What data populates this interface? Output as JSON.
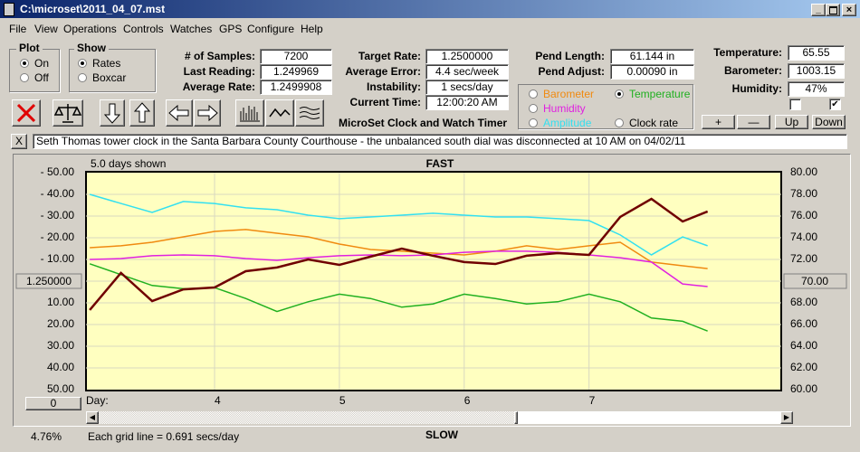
{
  "window": {
    "title": "C:\\microset\\2011_04_07.mst"
  },
  "menu": [
    "File",
    "View",
    "Operations",
    "Controls",
    "Watches",
    "GPS",
    "Configure",
    "Help"
  ],
  "plot_group": {
    "title": "Plot",
    "options": [
      "On",
      "Off"
    ],
    "selected": 0
  },
  "show_group": {
    "title": "Show",
    "options": [
      "Rates",
      "Boxcar"
    ],
    "selected": 0
  },
  "fields": [
    {
      "label": "# of Samples:",
      "value": "7200"
    },
    {
      "label": "Last Reading:",
      "value": "1.249969"
    },
    {
      "label": "Average Rate:",
      "value": "1.2499908"
    },
    {
      "label": "Target Rate:",
      "value": "1.2500000"
    },
    {
      "label": "Average Error:",
      "value": "4.4 sec/week"
    },
    {
      "label": "Instability:",
      "value": "1 secs/day"
    },
    {
      "label": "Current Time:",
      "value": "12:00:20 AM"
    },
    {
      "label": "Pend Length:",
      "value": "61.144 in"
    },
    {
      "label": "Pend Adjust:",
      "value": "0.00090 in"
    },
    {
      "label": "Temperature:",
      "value": "65.55"
    },
    {
      "label": "Barometer:",
      "value": "1003.15"
    },
    {
      "label": "Humidity:",
      "value": "47%"
    }
  ],
  "app_name": "MicroSet Clock and Watch Timer",
  "clock_rate_option": "Clock rate",
  "buttons": [
    "+",
    "—",
    "Up",
    "Down"
  ],
  "checkboxes": [
    false,
    true
  ],
  "comment": {
    "close": "X",
    "text": "Seth Thomas tower clock in the Santa Barbara County Courthouse - the unbalanced south dial was disconnected at 10 AM on 04/02/11"
  },
  "status": {
    "percent": "4.76%",
    "grid_note": "Each grid line = 0.691 secs/day",
    "offset_button": "0"
  },
  "chart_data": {
    "type": "line",
    "top_label": "FAST",
    "bottom_label": "SLOW",
    "span_label": "5.0 days shown",
    "x_label": "Day:",
    "xlim": [
      2.97,
      8.54
    ],
    "xticks": [
      4,
      5,
      6,
      7
    ],
    "ylim": [
      -50,
      50
    ],
    "yticks": [
      {
        "value": 50,
        "label": "- 50.00"
      },
      {
        "value": 40,
        "label": "- 40.00"
      },
      {
        "value": 30,
        "label": "- 30.00"
      },
      {
        "value": 20,
        "label": "- 20.00"
      },
      {
        "value": 10,
        "label": "- 10.00"
      },
      {
        "value": 0,
        "label": "1.250000"
      },
      {
        "value": -10,
        "label": "10.00"
      },
      {
        "value": -20,
        "label": "20.00"
      },
      {
        "value": -30,
        "label": "30.00"
      },
      {
        "value": -40,
        "label": "40.00"
      },
      {
        "value": -50,
        "label": "50.00"
      }
    ],
    "y2lim": [
      60,
      80
    ],
    "y2ticks": [
      {
        "value": 80,
        "label": "80.00"
      },
      {
        "value": 78,
        "label": "78.00"
      },
      {
        "value": 76,
        "label": "76.00"
      },
      {
        "value": 74,
        "label": "74.00"
      },
      {
        "value": 72,
        "label": "72.00"
      },
      {
        "value": 70,
        "label": "70.00"
      },
      {
        "value": 68,
        "label": "68.00"
      },
      {
        "value": 66,
        "label": "66.00"
      },
      {
        "value": 64,
        "label": "64.00"
      },
      {
        "value": 62,
        "label": "62.00"
      },
      {
        "value": 60,
        "label": "60.00"
      }
    ],
    "grid": true,
    "legend_selected": 3,
    "x": [
      3.0,
      3.25,
      3.5,
      3.75,
      4.0,
      4.25,
      4.5,
      4.75,
      5.0,
      5.25,
      5.5,
      5.75,
      6.0,
      6.25,
      6.5,
      6.75,
      7.0,
      7.25,
      7.5,
      7.75,
      7.95
    ],
    "series": [
      {
        "name": "Amplitude",
        "color": "#33e0f0",
        "values": [
          40,
          35.8,
          31.7,
          36.7,
          35.8,
          33.8,
          32.9,
          30.4,
          28.8,
          29.6,
          30.4,
          31.3,
          30.4,
          29.6,
          29.6,
          28.8,
          27.9,
          21.3,
          12.1,
          20.4,
          16.3
        ]
      },
      {
        "name": "Barometer",
        "color": "#f08a10",
        "values": [
          15.4,
          16.3,
          17.9,
          20.4,
          22.9,
          23.8,
          22.1,
          20.4,
          17.1,
          14.6,
          13.8,
          12.9,
          12.1,
          13.8,
          16.3,
          14.6,
          16.3,
          17.9,
          8.8,
          7.1,
          5.8
        ]
      },
      {
        "name": "Humidity",
        "color": "#e020e0",
        "values": [
          10,
          10.4,
          11.7,
          12.1,
          11.7,
          10.4,
          9.6,
          10.8,
          11.7,
          12.1,
          11.7,
          12.1,
          13.3,
          13.8,
          13.8,
          13.3,
          12.1,
          10.8,
          8.8,
          -1.3,
          -2.5
        ]
      },
      {
        "name": "Temperature",
        "color": "#20b020",
        "axis": "y2",
        "values": [
          71.6,
          70.6,
          69.6,
          69.3,
          69.4,
          68.4,
          67.2,
          68.1,
          68.8,
          68.4,
          67.6,
          67.9,
          68.8,
          68.4,
          67.9,
          68.1,
          68.8,
          68.1,
          66.6,
          66.3,
          65.4
        ]
      },
      {
        "color": "#700000",
        "values": [
          -13.3,
          3.8,
          -9.2,
          -3.8,
          -2.9,
          4.6,
          6.3,
          10,
          7.5,
          11.3,
          15,
          11.7,
          8.8,
          7.9,
          11.7,
          12.9,
          12.1,
          29.6,
          37.9,
          27.5,
          32.1
        ]
      }
    ]
  }
}
